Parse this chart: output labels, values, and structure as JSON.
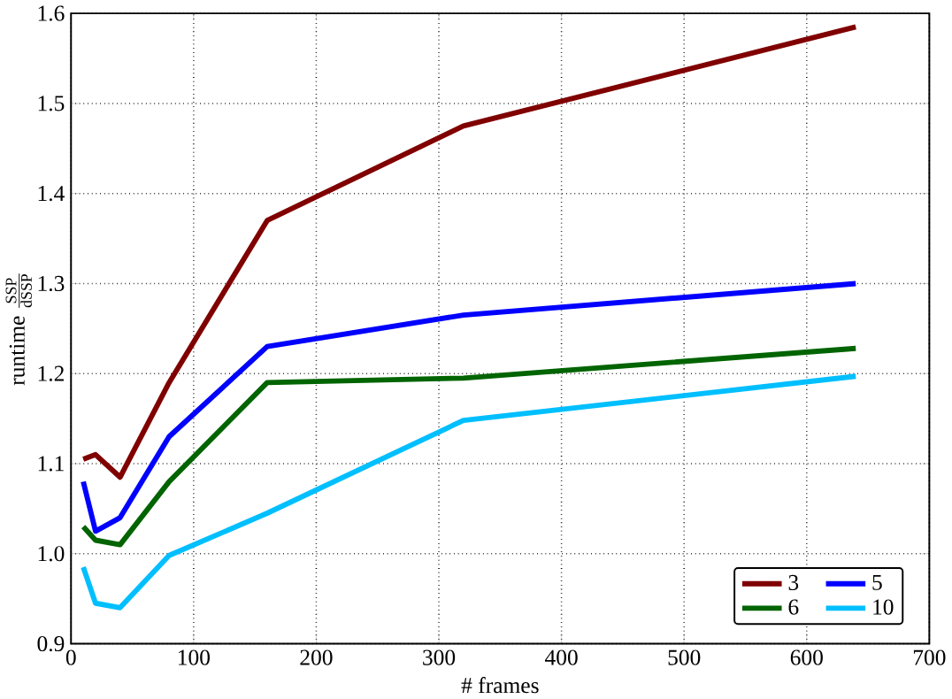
{
  "chart_data": {
    "type": "line",
    "xlabel": "# frames",
    "ylabel": "\\text{runtime }\\frac{\\text{SSP}}{\\text{dSSP}}",
    "x": [
      10,
      20,
      40,
      80,
      160,
      320,
      640
    ],
    "series": [
      {
        "name": "3",
        "color": "#800000",
        "values": [
          1.105,
          1.11,
          1.085,
          1.19,
          1.37,
          1.475,
          1.585
        ]
      },
      {
        "name": "5",
        "color": "#0000ff",
        "values": [
          1.08,
          1.025,
          1.04,
          1.13,
          1.23,
          1.265,
          1.3
        ]
      },
      {
        "name": "6",
        "color": "#006400",
        "values": [
          1.03,
          1.015,
          1.01,
          1.08,
          1.19,
          1.195,
          1.228
        ]
      },
      {
        "name": "10",
        "color": "#00bfff",
        "values": [
          0.985,
          0.945,
          0.94,
          0.998,
          1.045,
          1.148,
          1.197
        ]
      }
    ],
    "xlim": [
      0,
      700
    ],
    "ylim": [
      0.9,
      1.6
    ],
    "xticks": [
      0,
      100,
      200,
      300,
      400,
      500,
      600,
      700
    ],
    "yticks": [
      {
        "value": 0.9,
        "label": "0.9"
      },
      {
        "value": 1.0,
        "label": "1.0"
      },
      {
        "value": 1.1,
        "label": "1.1"
      },
      {
        "value": 1.2,
        "label": "1.2"
      },
      {
        "value": 1.3,
        "label": "1.3"
      },
      {
        "value": 1.4,
        "label": "1.4"
      },
      {
        "value": 1.5,
        "label": "1.5"
      },
      {
        "value": 1.6,
        "label": "1.6"
      }
    ],
    "grid": true,
    "legend": "bottom right",
    "marker": "none",
    "line_style": "solid"
  }
}
